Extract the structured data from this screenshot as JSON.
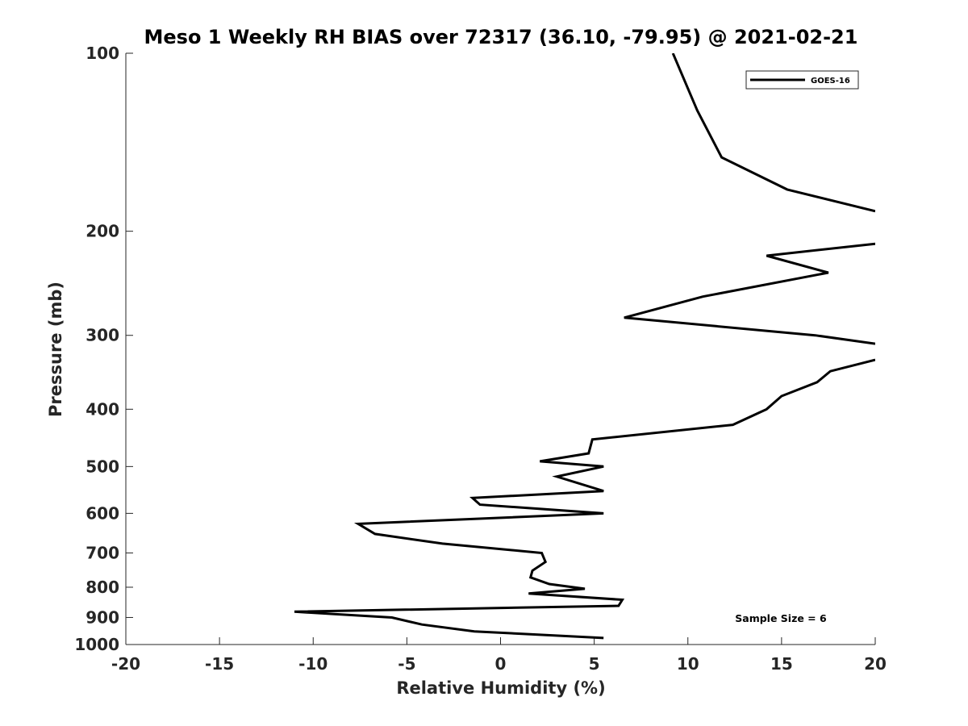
{
  "chart_data": {
    "type": "line",
    "title": "Meso 1 Weekly RH BIAS over 72317 (36.10, -79.95) @ 2021-02-21",
    "xlabel": "Relative Humidity (%)",
    "ylabel": "Pressure (mb)",
    "xlim": [
      -20,
      20
    ],
    "ylim": [
      100,
      1000
    ],
    "y_scale": "log",
    "y_reversed": true,
    "x_ticks": [
      "-20",
      "-15",
      "-10",
      "-5",
      "0",
      "5",
      "10",
      "15",
      "20"
    ],
    "y_ticks": [
      "100",
      "200",
      "300",
      "400",
      "500",
      "600",
      "700",
      "800",
      "900",
      "1000"
    ],
    "grid": false,
    "legend": {
      "position": "top-right",
      "entries": [
        "GOES-16"
      ]
    },
    "annotation": "Sample Size = 6",
    "series": [
      {
        "name": "GOES-16",
        "color": "#000000",
        "points": [
          {
            "x": 9.2,
            "p": 100
          },
          {
            "x": 10.5,
            "p": 125
          },
          {
            "x": 11.8,
            "p": 150
          },
          {
            "x": 15.3,
            "p": 170
          },
          {
            "x": 20.0,
            "p": 185
          },
          {
            "x": null,
            "p": 195
          },
          {
            "x": 20.0,
            "p": 210
          },
          {
            "x": 14.2,
            "p": 220
          },
          {
            "x": 17.5,
            "p": 235
          },
          {
            "x": 10.8,
            "p": 258
          },
          {
            "x": 6.6,
            "p": 280
          },
          {
            "x": 16.8,
            "p": 300
          },
          {
            "x": 20.0,
            "p": 310
          },
          {
            "x": null,
            "p": 320
          },
          {
            "x": 20.0,
            "p": 330
          },
          {
            "x": 17.6,
            "p": 345
          },
          {
            "x": 16.9,
            "p": 360
          },
          {
            "x": 15.0,
            "p": 380
          },
          {
            "x": 14.2,
            "p": 400
          },
          {
            "x": 12.4,
            "p": 425
          },
          {
            "x": 4.9,
            "p": 450
          },
          {
            "x": 4.7,
            "p": 475
          },
          {
            "x": 2.1,
            "p": 490
          },
          {
            "x": 5.5,
            "p": 500
          },
          {
            "x": 3.0,
            "p": 520
          },
          {
            "x": 5.5,
            "p": 550
          },
          {
            "x": -1.5,
            "p": 565
          },
          {
            "x": -1.1,
            "p": 580
          },
          {
            "x": 5.5,
            "p": 600
          },
          {
            "x": -7.6,
            "p": 625
          },
          {
            "x": -6.7,
            "p": 650
          },
          {
            "x": -3.1,
            "p": 675
          },
          {
            "x": 2.2,
            "p": 700
          },
          {
            "x": 2.4,
            "p": 725
          },
          {
            "x": 1.7,
            "p": 750
          },
          {
            "x": 1.6,
            "p": 770
          },
          {
            "x": 2.6,
            "p": 790
          },
          {
            "x": 4.5,
            "p": 805
          },
          {
            "x": 1.5,
            "p": 820
          },
          {
            "x": 6.5,
            "p": 840
          },
          {
            "x": 6.3,
            "p": 860
          },
          {
            "x": -11.0,
            "p": 880
          },
          {
            "x": -5.8,
            "p": 900
          },
          {
            "x": -4.2,
            "p": 925
          },
          {
            "x": -1.4,
            "p": 950
          },
          {
            "x": 5.5,
            "p": 975
          }
        ]
      }
    ]
  }
}
